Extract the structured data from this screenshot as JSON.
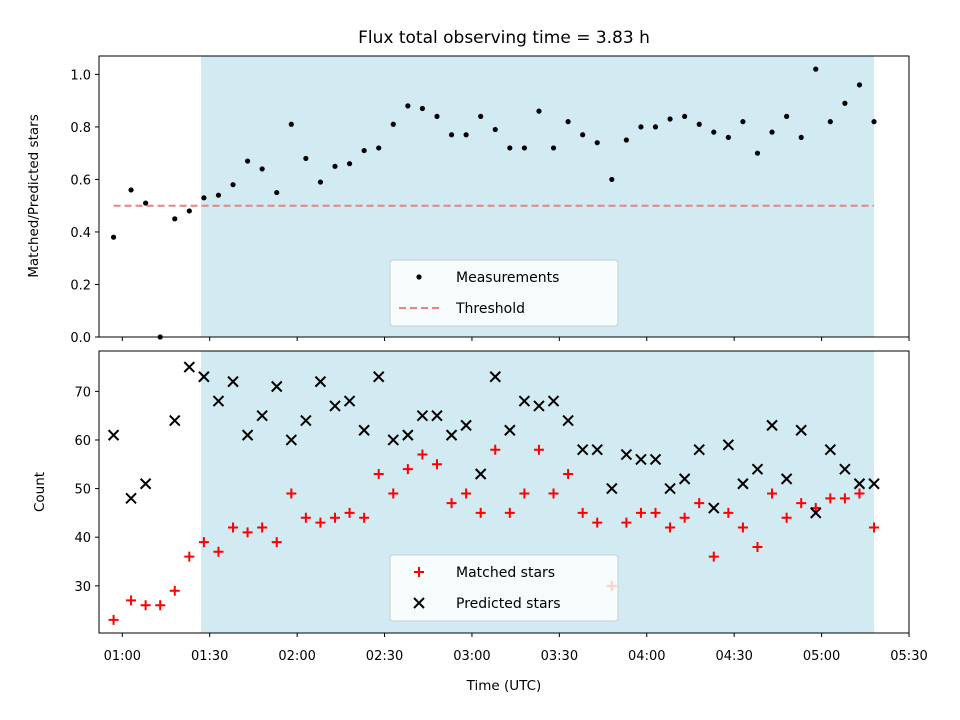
{
  "title": "Flux total observing time = 3.83 h",
  "xlabel": "Time (UTC)",
  "x_ticks": [
    "01:00",
    "01:30",
    "02:00",
    "02:30",
    "03:00",
    "03:30",
    "04:00",
    "04:30",
    "05:00",
    "05:30"
  ],
  "colors": {
    "shade": "#add8e6",
    "threshold": "#f08080",
    "matched": "#ff0000",
    "predicted": "#000000",
    "measurement": "#000000"
  },
  "chart_data": [
    {
      "type": "scatter",
      "panel": "top",
      "ylabel": "Matched/Predicted stars",
      "ylim": [
        0,
        1.07
      ],
      "yticks": [
        "0.0",
        "0.2",
        "0.4",
        "0.6",
        "0.8",
        "1.0"
      ],
      "xlim": [
        "00:52",
        "05:30"
      ],
      "shaded_interval": [
        "01:27",
        "05:18"
      ],
      "threshold": 0.5,
      "grid": false,
      "legend_position": "bottom-center",
      "series": [
        {
          "name": "Measurements",
          "x": [
            "00:57",
            "01:03",
            "01:08",
            "01:13",
            "01:18",
            "01:23",
            "01:28",
            "01:33",
            "01:38",
            "01:43",
            "01:48",
            "01:53",
            "01:58",
            "02:03",
            "02:08",
            "02:13",
            "02:18",
            "02:23",
            "02:28",
            "02:33",
            "02:38",
            "02:43",
            "02:48",
            "02:53",
            "02:58",
            "03:03",
            "03:08",
            "03:13",
            "03:18",
            "03:23",
            "03:28",
            "03:33",
            "03:38",
            "03:43",
            "03:48",
            "03:53",
            "03:58",
            "04:03",
            "04:08",
            "04:13",
            "04:18",
            "04:23",
            "04:28",
            "04:33",
            "04:38",
            "04:43",
            "04:48",
            "04:53",
            "04:58",
            "05:03",
            "05:08",
            "05:13",
            "05:18"
          ],
          "values": [
            0.38,
            0.56,
            0.51,
            0.0,
            0.45,
            0.48,
            0.53,
            0.54,
            0.58,
            0.67,
            0.64,
            0.55,
            0.81,
            0.68,
            0.59,
            0.65,
            0.66,
            0.71,
            0.72,
            0.81,
            0.88,
            0.87,
            0.84,
            0.77,
            0.77,
            0.84,
            0.79,
            0.72,
            0.72,
            0.86,
            0.72,
            0.82,
            0.77,
            0.74,
            0.6,
            0.75,
            0.8,
            0.8,
            0.83,
            0.84,
            0.81,
            0.78,
            0.76,
            0.82,
            0.7,
            0.78,
            0.84,
            0.76,
            1.02,
            0.82,
            0.89,
            0.96,
            0.82
          ]
        },
        {
          "name": "Threshold",
          "x": [
            "00:57",
            "05:18"
          ],
          "values": [
            0.5,
            0.5
          ]
        }
      ]
    },
    {
      "type": "scatter",
      "panel": "bottom",
      "ylabel": "Count",
      "ylim": [
        20.3,
        78.3
      ],
      "yticks": [
        "30",
        "40",
        "50",
        "60",
        "70"
      ],
      "xlim": [
        "00:52",
        "05:30"
      ],
      "shaded_interval": [
        "01:27",
        "05:18"
      ],
      "grid": false,
      "legend_position": "bottom-center",
      "series": [
        {
          "name": "Matched stars",
          "x": [
            "00:57",
            "01:03",
            "01:08",
            "01:13",
            "01:18",
            "01:23",
            "01:28",
            "01:33",
            "01:38",
            "01:43",
            "01:48",
            "01:53",
            "01:58",
            "02:03",
            "02:08",
            "02:13",
            "02:18",
            "02:23",
            "02:28",
            "02:33",
            "02:38",
            "02:43",
            "02:48",
            "02:53",
            "02:58",
            "03:03",
            "03:08",
            "03:13",
            "03:18",
            "03:23",
            "03:28",
            "03:33",
            "03:38",
            "03:43",
            "03:48",
            "03:53",
            "03:58",
            "04:03",
            "04:08",
            "04:13",
            "04:18",
            "04:23",
            "04:28",
            "04:33",
            "04:38",
            "04:43",
            "04:48",
            "04:53",
            "04:58",
            "05:03",
            "05:08",
            "05:13",
            "05:18"
          ],
          "values": [
            23,
            27,
            26,
            26,
            29,
            36,
            39,
            37,
            42,
            41,
            42,
            39,
            49,
            44,
            43,
            44,
            45,
            44,
            53,
            49,
            54,
            57,
            55,
            47,
            49,
            45,
            58,
            45,
            49,
            58,
            49,
            53,
            45,
            43,
            30,
            43,
            45,
            45,
            42,
            44,
            47,
            36,
            45,
            42,
            38,
            49,
            44,
            47,
            46,
            48,
            48,
            49,
            42
          ]
        },
        {
          "name": "Predicted stars",
          "x": [
            "00:57",
            "01:03",
            "01:08",
            "01:18",
            "01:23",
            "01:28",
            "01:33",
            "01:38",
            "01:43",
            "01:48",
            "01:53",
            "01:58",
            "02:03",
            "02:08",
            "02:13",
            "02:18",
            "02:23",
            "02:28",
            "02:33",
            "02:38",
            "02:43",
            "02:48",
            "02:53",
            "02:58",
            "03:03",
            "03:08",
            "03:13",
            "03:18",
            "03:23",
            "03:28",
            "03:33",
            "03:38",
            "03:43",
            "03:48",
            "03:53",
            "03:58",
            "04:03",
            "04:08",
            "04:13",
            "04:18",
            "04:23",
            "04:28",
            "04:33",
            "04:38",
            "04:43",
            "04:48",
            "04:53",
            "04:58",
            "05:03",
            "05:08",
            "05:13",
            "05:18"
          ],
          "values": [
            61,
            48,
            51,
            64,
            75,
            73,
            68,
            72,
            61,
            65,
            71,
            60,
            64,
            72,
            67,
            68,
            62,
            73,
            60,
            61,
            65,
            65,
            61,
            63,
            53,
            73,
            62,
            68,
            67,
            68,
            64,
            58,
            58,
            50,
            57,
            56,
            56,
            50,
            52,
            58,
            46,
            59,
            51,
            54,
            63,
            52,
            62,
            45,
            58,
            54,
            51,
            51
          ]
        }
      ]
    }
  ]
}
